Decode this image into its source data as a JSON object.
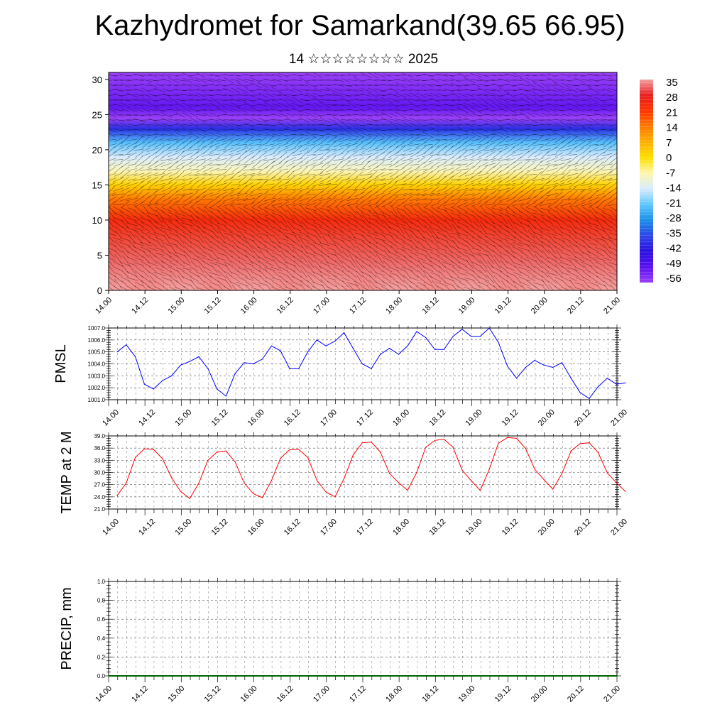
{
  "title": "Kazhydromet for Samarkand(39.65 66.95)",
  "subtitle": "14 ☆☆☆☆☆☆☆☆ 2025",
  "chart_data": [
    {
      "type": "heatmap",
      "name": "cross-section",
      "x_ticks": [
        "14.00",
        "14.12",
        "15.00",
        "15.12",
        "16.00",
        "16.12",
        "17.00",
        "17.12",
        "18.00",
        "18.12",
        "19.00",
        "19.12",
        "20.00",
        "20.12",
        "21.00"
      ],
      "y_ticks": [
        0,
        5,
        10,
        15,
        20,
        25,
        30
      ],
      "ylim": [
        0,
        31
      ],
      "colorbar_labels": [
        "35",
        "28",
        "21",
        "14",
        "7",
        "0",
        "-7",
        "-14",
        "-21",
        "-28",
        "-35",
        "-42",
        "-49",
        "-56"
      ],
      "colorbar_colors": [
        "#f4a0a0",
        "#e82020",
        "#ff3300",
        "#ff7a00",
        "#ffb000",
        "#ffe000",
        "#fff7b0",
        "#d8ecff",
        "#60c8ff",
        "#1a8ee8",
        "#2b46e8",
        "#2a10e0",
        "#5a10f0",
        "#9a40f8"
      ],
      "color_stops": [
        {
          "h": 0,
          "t": 38
        },
        {
          "h": 4,
          "t": 32
        },
        {
          "h": 10,
          "t": 24
        },
        {
          "h": 13,
          "t": 14
        },
        {
          "h": 15,
          "t": 2
        },
        {
          "h": 17,
          "t": -8
        },
        {
          "h": 19,
          "t": -14
        },
        {
          "h": 21,
          "t": -22
        },
        {
          "h": 23,
          "t": -38
        },
        {
          "h": 24.5,
          "t": -56
        },
        {
          "h": 26,
          "t": -50
        },
        {
          "h": 31,
          "t": -60
        }
      ],
      "grid": false
    },
    {
      "type": "line",
      "name": "pressure",
      "ylabel": "PMSL",
      "ylim": [
        1001.0,
        1007.0
      ],
      "y_ticks": [
        "1001.0",
        "1002.0",
        "1003.0",
        "1004.0",
        "1005.0",
        "1006.0",
        "1007.0"
      ],
      "x_ticks": [
        "14.00",
        "14.12",
        "15.00",
        "15.12",
        "16.00",
        "16.12",
        "17.00",
        "17.12",
        "18.00",
        "18.12",
        "19.00",
        "19.12",
        "20.00",
        "20.12",
        "21.00"
      ],
      "x_step_hours": 3,
      "color": "#0000ff",
      "values": [
        1005.0,
        1005.6,
        1004.6,
        1002.3,
        1001.9,
        1002.6,
        1003.0,
        1003.9,
        1004.2,
        1004.6,
        1003.6,
        1001.9,
        1001.3,
        1003.2,
        1004.1,
        1004.0,
        1004.4,
        1005.5,
        1005.1,
        1003.6,
        1003.6,
        1005.0,
        1006.0,
        1005.5,
        1005.9,
        1006.6,
        1005.3,
        1004.0,
        1003.6,
        1004.8,
        1005.3,
        1004.8,
        1005.5,
        1006.7,
        1006.2,
        1005.2,
        1005.2,
        1006.3,
        1006.9,
        1006.3,
        1006.3,
        1007.0,
        1005.8,
        1003.8,
        1002.8,
        1003.7,
        1004.3,
        1003.9,
        1003.7,
        1004.1,
        1002.8,
        1001.6,
        1001.1,
        1002.1,
        1002.8,
        1002.3,
        1002.4
      ],
      "grid": true
    },
    {
      "type": "line",
      "name": "temperature",
      "ylabel": "TEMP at 2 M",
      "ylim": [
        21.0,
        39.0
      ],
      "y_ticks": [
        "21.0",
        "24.0",
        "27.0",
        "30.0",
        "33.0",
        "36.0",
        "39.0"
      ],
      "x_ticks": [
        "14.00",
        "14.12",
        "15.00",
        "15.12",
        "16.00",
        "16.12",
        "17.00",
        "17.12",
        "18.00",
        "18.12",
        "19.00",
        "19.12",
        "20.00",
        "20.12",
        "21.00"
      ],
      "x_step_hours": 3,
      "color": "#ff0000",
      "values": [
        24.3,
        27.4,
        33.7,
        35.8,
        35.7,
        33.4,
        28.7,
        25.3,
        23.6,
        27.4,
        33.0,
        35.0,
        35.3,
        32.6,
        27.4,
        24.8,
        23.8,
        28.0,
        33.5,
        35.6,
        35.7,
        33.7,
        28.1,
        25.2,
        24.0,
        28.5,
        34.3,
        37.3,
        37.5,
        35.0,
        29.8,
        27.5,
        25.6,
        30.0,
        36.2,
        37.9,
        38.2,
        36.2,
        30.6,
        28.0,
        25.6,
        30.8,
        37.2,
        38.6,
        38.4,
        35.9,
        30.8,
        28.3,
        25.9,
        29.7,
        35.3,
        37.1,
        37.3,
        34.9,
        29.9,
        27.5,
        25.3
      ],
      "grid": true
    },
    {
      "type": "line",
      "name": "precipitation",
      "ylabel": "PRECIP, mm",
      "ylim": [
        0.0,
        1.0
      ],
      "y_ticks": [
        "0.0",
        "0.2",
        "0.4",
        "0.6",
        "0.8",
        "1.0"
      ],
      "x_ticks": [
        "14.00",
        "14.12",
        "15.00",
        "15.12",
        "16.00",
        "16.12",
        "17.00",
        "17.12",
        "18.00",
        "18.12",
        "19.00",
        "19.12",
        "20.00",
        "20.12",
        "21.00"
      ],
      "x_step_hours": 3,
      "color": "#006400",
      "values": [
        0,
        0,
        0,
        0,
        0,
        0,
        0,
        0,
        0,
        0,
        0,
        0,
        0,
        0,
        0,
        0,
        0,
        0,
        0,
        0,
        0,
        0,
        0,
        0,
        0,
        0,
        0,
        0,
        0,
        0,
        0,
        0,
        0,
        0,
        0,
        0,
        0,
        0,
        0,
        0,
        0,
        0,
        0,
        0,
        0,
        0,
        0,
        0,
        0,
        0,
        0,
        0,
        0,
        0,
        0,
        0,
        0
      ],
      "grid": true
    }
  ]
}
